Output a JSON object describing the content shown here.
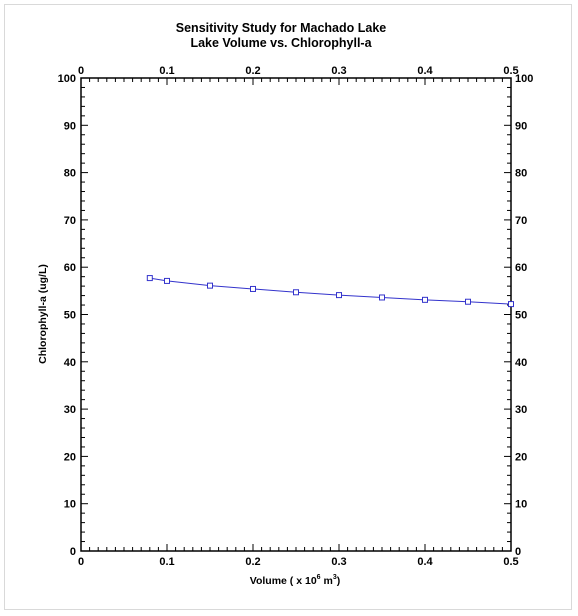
{
  "chart_data": {
    "type": "line",
    "title_line1": "Sensitivity Study for Machado Lake",
    "title_line2": "Lake Volume vs. Chlorophyll-a",
    "xlabel": "Volume ( x 10",
    "xlabel_sup1": "6",
    "xlabel_unit": " m",
    "xlabel_sup2": "3",
    "xlabel_close": ")",
    "ylabel": "Chlorophyll-a (ug/L)",
    "xlim": [
      0,
      0.5
    ],
    "ylim": [
      0,
      100
    ],
    "x_ticks": [
      0,
      0.1,
      0.2,
      0.3,
      0.4,
      0.5
    ],
    "x_tick_labels": [
      "0",
      "0.1",
      "0.2",
      "0.3",
      "0.4",
      "0.5"
    ],
    "y_ticks": [
      0,
      10,
      20,
      30,
      40,
      50,
      60,
      70,
      80,
      90,
      100
    ],
    "y_tick_labels": [
      "0",
      "10",
      "20",
      "30",
      "40",
      "50",
      "60",
      "70",
      "80",
      "90",
      "100"
    ],
    "mirror_axes": true,
    "grid": false,
    "series": [
      {
        "color": "#3333cc",
        "marker": "square",
        "x": [
          0.08,
          0.1,
          0.15,
          0.2,
          0.25,
          0.3,
          0.35,
          0.4,
          0.45,
          0.5
        ],
        "y": [
          57.7,
          57.1,
          56.1,
          55.4,
          54.7,
          54.1,
          53.6,
          53.1,
          52.7,
          52.2
        ]
      }
    ]
  }
}
